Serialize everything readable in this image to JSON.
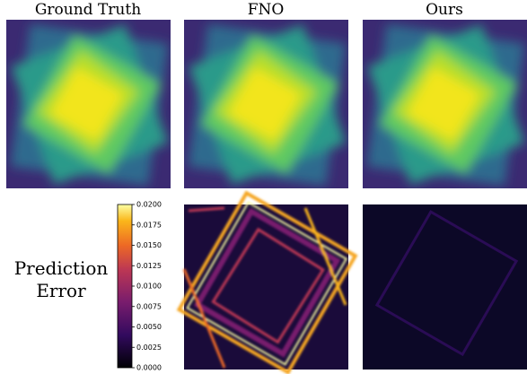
{
  "columns": [
    "Ground Truth",
    "FNO",
    "Ours"
  ],
  "row_label": [
    "Prediction",
    "Error"
  ],
  "colorbar": {
    "lim": [
      0,
      0.02
    ],
    "ticks": [
      {
        "value": 0,
        "label": "0.0000"
      },
      0.0025,
      {
        "value": 0.005,
        "label": "0.0050"
      },
      0.0075,
      {
        "value": 0.01,
        "label": "0.0100"
      },
      0.0125,
      {
        "value": 0.015,
        "label": "0.0150"
      },
      0.0175,
      {
        "value": 0.02,
        "label": "0.0200"
      }
    ]
  }
}
